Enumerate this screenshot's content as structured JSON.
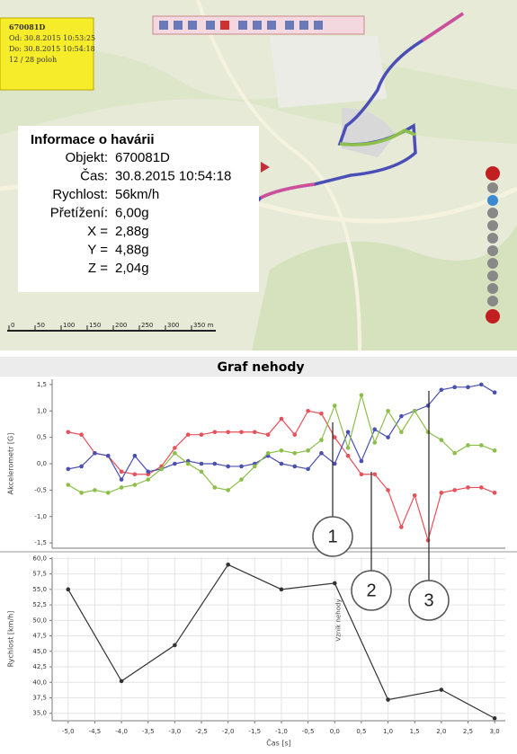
{
  "map": {
    "track_box": [
      "670081D",
      "Od: 30.8.2015 10:53:25",
      "Do: 30.8.2015 10:54:18",
      "12 / 28 poloh"
    ],
    "info": {
      "title": "Informace o havárii",
      "rows": [
        {
          "label": "Objekt:",
          "value": "670081D"
        },
        {
          "label": "Čas:",
          "value": "30.8.2015 10:54:18"
        },
        {
          "label": "Rychlost:",
          "value": "56km/h"
        },
        {
          "label": "Přetížení:",
          "value": "6,00g"
        },
        {
          "label": "X =",
          "value": "2,88g"
        },
        {
          "label": "Y =",
          "value": "4,88g"
        },
        {
          "label": "Z =",
          "value": "2,04g"
        }
      ]
    },
    "scale": [
      "0",
      "50",
      "100",
      "150",
      "200",
      "250",
      "300",
      "350 m"
    ]
  },
  "graph_title": "Graf nehody",
  "callouts": [
    "1",
    "2",
    "3"
  ],
  "chart_data": [
    {
      "type": "line",
      "y_label": "Akcelerometr [G]",
      "x": [
        -5.0,
        -4.75,
        -4.5,
        -4.25,
        -4.0,
        -3.75,
        -3.5,
        -3.25,
        -3.0,
        -2.75,
        -2.5,
        -2.25,
        -2.0,
        -1.75,
        -1.5,
        -1.25,
        -1.0,
        -0.75,
        -0.5,
        -0.25,
        0.0,
        0.25,
        0.5,
        0.75,
        1.0,
        1.25,
        1.5,
        1.75,
        2.0,
        2.25,
        2.5,
        2.75,
        3.0
      ],
      "xlim": [
        -5.3,
        3.2
      ],
      "ylim": [
        -1.6,
        1.6
      ],
      "yticks": [
        {
          "value": -1.5,
          "label": "-1,5"
        },
        {
          "value": -1.0,
          "label": "-1,0"
        },
        {
          "value": -0.5,
          "label": "-0,5"
        },
        {
          "value": 0,
          "label": "0,0"
        },
        {
          "value": 0.5,
          "label": "0,5"
        },
        {
          "value": 1.0,
          "label": "1,0"
        },
        {
          "value": 1.5,
          "label": "1,5"
        }
      ],
      "grid": false,
      "series": [
        {
          "color": "#e8505a",
          "values": [
            0.6,
            0.55,
            0.2,
            0.15,
            -0.15,
            -0.2,
            -0.2,
            -0.05,
            0.3,
            0.55,
            0.55,
            0.6,
            0.6,
            0.6,
            0.6,
            0.55,
            0.85,
            0.55,
            1.0,
            0.95,
            0.5,
            0.15,
            -0.2,
            -0.2,
            -0.5,
            -1.2,
            -0.6,
            -1.45,
            -0.55,
            -0.5,
            -0.45,
            -0.45,
            -0.55
          ]
        },
        {
          "color": "#4a4fb0",
          "values": [
            -0.1,
            -0.05,
            0.2,
            0.15,
            -0.3,
            0.15,
            -0.15,
            -0.1,
            0.0,
            0.05,
            0.0,
            0.0,
            -0.05,
            -0.05,
            0.0,
            0.15,
            0.0,
            -0.05,
            -0.1,
            0.2,
            0.0,
            0.6,
            0.05,
            0.65,
            0.5,
            0.9,
            1.0,
            1.1,
            1.4,
            1.45,
            1.45,
            1.5,
            1.35
          ]
        },
        {
          "color": "#8cbf4a",
          "values": [
            -0.4,
            -0.55,
            -0.5,
            -0.55,
            -0.45,
            -0.4,
            -0.3,
            -0.1,
            0.2,
            0.0,
            -0.15,
            -0.45,
            -0.5,
            -0.3,
            -0.05,
            0.2,
            0.25,
            0.2,
            0.25,
            0.45,
            1.1,
            0.3,
            1.3,
            0.4,
            1.0,
            0.6,
            1.0,
            0.6,
            0.45,
            0.2,
            0.35,
            0.35,
            0.25
          ]
        }
      ]
    },
    {
      "type": "line",
      "y_label": "Rychlost [km/h]",
      "x_label": "Čas [s]",
      "annotation": "Vznik nehody",
      "x": [
        -5.0,
        -4.0,
        -3.0,
        -2.0,
        -1.0,
        0.0,
        1.0,
        2.0,
        3.0
      ],
      "xlim": [
        -5.3,
        3.2
      ],
      "ylim": [
        33.8,
        60.2
      ],
      "xticks": [
        {
          "value": -5,
          "label": "-5,0"
        },
        {
          "value": -4.5,
          "label": "-4,5"
        },
        {
          "value": -4,
          "label": "-4,0"
        },
        {
          "value": -3.5,
          "label": "-3,5"
        },
        {
          "value": -3,
          "label": "-3,0"
        },
        {
          "value": -2.5,
          "label": "-2,5"
        },
        {
          "value": -2,
          "label": "-2,0"
        },
        {
          "value": -1.5,
          "label": "-1,5"
        },
        {
          "value": -1,
          "label": "-1,0"
        },
        {
          "value": -0.5,
          "label": "-0,5"
        },
        {
          "value": 0,
          "label": "0,0"
        },
        {
          "value": 0.5,
          "label": "0,5"
        },
        {
          "value": 1,
          "label": "1,0"
        },
        {
          "value": 1.5,
          "label": "1,5"
        },
        {
          "value": 2,
          "label": "2,0"
        },
        {
          "value": 2.5,
          "label": "2,5"
        },
        {
          "value": 3,
          "label": "3,0"
        }
      ],
      "yticks": [
        {
          "value": 35,
          "label": "35,0"
        },
        {
          "value": 37.5,
          "label": "37,5"
        },
        {
          "value": 40,
          "label": "40,0"
        },
        {
          "value": 42.5,
          "label": "42,5"
        },
        {
          "value": 45,
          "label": "45,0"
        },
        {
          "value": 47.5,
          "label": "47,5"
        },
        {
          "value": 50,
          "label": "50,0"
        },
        {
          "value": 52.5,
          "label": "52,5"
        },
        {
          "value": 55,
          "label": "55,0"
        },
        {
          "value": 57.5,
          "label": "57,5"
        },
        {
          "value": 60,
          "label": "60,0"
        }
      ],
      "grid": true,
      "series": [
        {
          "color": "#333333",
          "values": [
            55,
            40.2,
            46,
            59,
            55,
            56,
            37.2,
            38.8,
            34.2
          ]
        }
      ]
    }
  ]
}
